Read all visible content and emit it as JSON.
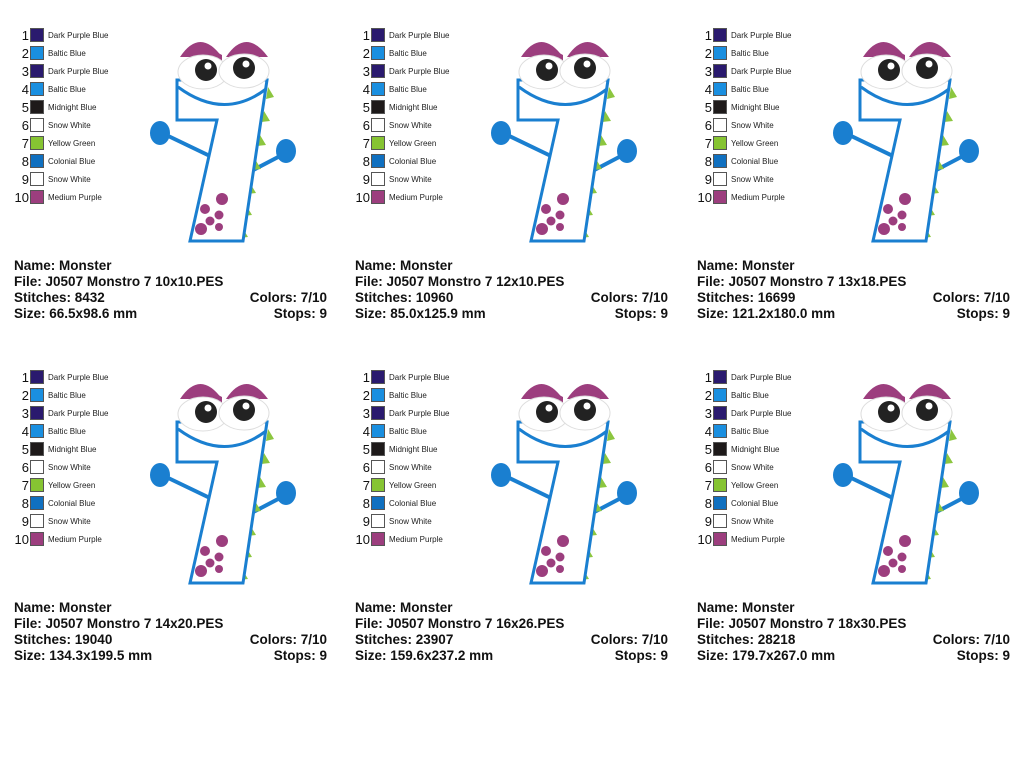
{
  "palette": [
    {
      "num": "1",
      "name": "Dark Purple Blue",
      "color": "#2a1a6e"
    },
    {
      "num": "2",
      "name": "Baltic Blue",
      "color": "#1a8fe0"
    },
    {
      "num": "3",
      "name": "Dark Purple Blue",
      "color": "#2a1a6e"
    },
    {
      "num": "4",
      "name": "Baltic Blue",
      "color": "#1a8fe0"
    },
    {
      "num": "5",
      "name": "Midnight Blue",
      "color": "#1e1a1a"
    },
    {
      "num": "6",
      "name": "Snow White",
      "color": "#ffffff"
    },
    {
      "num": "7",
      "name": "Yellow Green",
      "color": "#86c432"
    },
    {
      "num": "8",
      "name": "Colonial Blue",
      "color": "#1070c0"
    },
    {
      "num": "9",
      "name": "Snow White",
      "color": "#ffffff"
    },
    {
      "num": "10",
      "name": "Medium Purple",
      "color": "#9c3e7e"
    }
  ],
  "labels": {
    "name": "Name:",
    "file": "File:",
    "stitches": "Stitches:",
    "colors": "Colors:",
    "size": "Size:",
    "stops": "Stops:"
  },
  "designs": [
    {
      "name": "Monster",
      "file": "J0507 Monstro 7 10x10.PES",
      "stitches": "8432",
      "colors": "7/10",
      "size": "66.5x98.6 mm",
      "stops": "9"
    },
    {
      "name": "Monster",
      "file": "J0507 Monstro 7 12x10.PES",
      "stitches": "10960",
      "colors": "7/10",
      "size": "85.0x125.9 mm",
      "stops": "9"
    },
    {
      "name": "Monster",
      "file": "J0507 Monstro 7 13x18.PES",
      "stitches": "16699",
      "colors": "7/10",
      "size": "121.2x180.0 mm",
      "stops": "9"
    },
    {
      "name": "Monster",
      "file": "J0507 Monstro 7 14x20.PES",
      "stitches": "19040",
      "colors": "7/10",
      "size": "134.3x199.5 mm",
      "stops": "9"
    },
    {
      "name": "Monster",
      "file": "J0507 Monstro 7 16x26.PES",
      "stitches": "23907",
      "colors": "7/10",
      "size": "159.6x237.2 mm",
      "stops": "9"
    },
    {
      "name": "Monster",
      "file": "J0507 Monstro 7 18x30.PES",
      "stitches": "28218",
      "colors": "7/10",
      "size": "179.7x267.0 mm",
      "stops": "9"
    }
  ]
}
